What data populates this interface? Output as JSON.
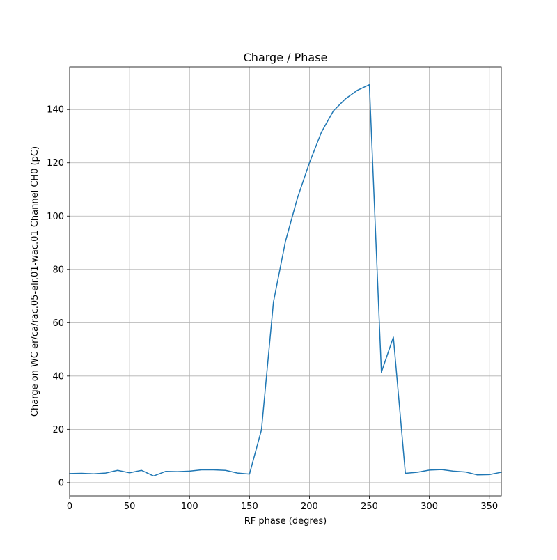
{
  "chart_data": {
    "type": "line",
    "title": "Charge / Phase",
    "xlabel": "RF phase (degres)",
    "ylabel": "Charge on WC er/ca/rac.05-elr.01-wac.01 Channel CH0 (pC)",
    "xlim": [
      0,
      360
    ],
    "ylim": [
      -5,
      156
    ],
    "xticks": [
      0,
      50,
      100,
      150,
      200,
      250,
      300,
      350
    ],
    "yticks": [
      0,
      20,
      40,
      60,
      80,
      100,
      120,
      140
    ],
    "grid": true,
    "series": [
      {
        "color": "#1f77b4",
        "x": [
          0,
          10,
          20,
          30,
          40,
          50,
          60,
          70,
          80,
          90,
          100,
          110,
          120,
          130,
          140,
          150,
          160,
          170,
          180,
          190,
          200,
          210,
          220,
          230,
          240,
          250,
          260,
          270,
          280,
          290,
          300,
          310,
          320,
          330,
          340,
          350,
          360
        ],
        "y": [
          3.4,
          3.5,
          3.3,
          3.6,
          4.6,
          3.7,
          4.6,
          2.5,
          4.2,
          4.1,
          4.3,
          4.8,
          4.8,
          4.6,
          3.6,
          3.2,
          19.8,
          67.8,
          90.5,
          106.8,
          120.0,
          131.5,
          139.5,
          144.0,
          147.2,
          149.3,
          41.4,
          54.6,
          3.5,
          3.9,
          4.7,
          4.9,
          4.3,
          4.0,
          2.9,
          3.0,
          3.9
        ]
      }
    ]
  }
}
